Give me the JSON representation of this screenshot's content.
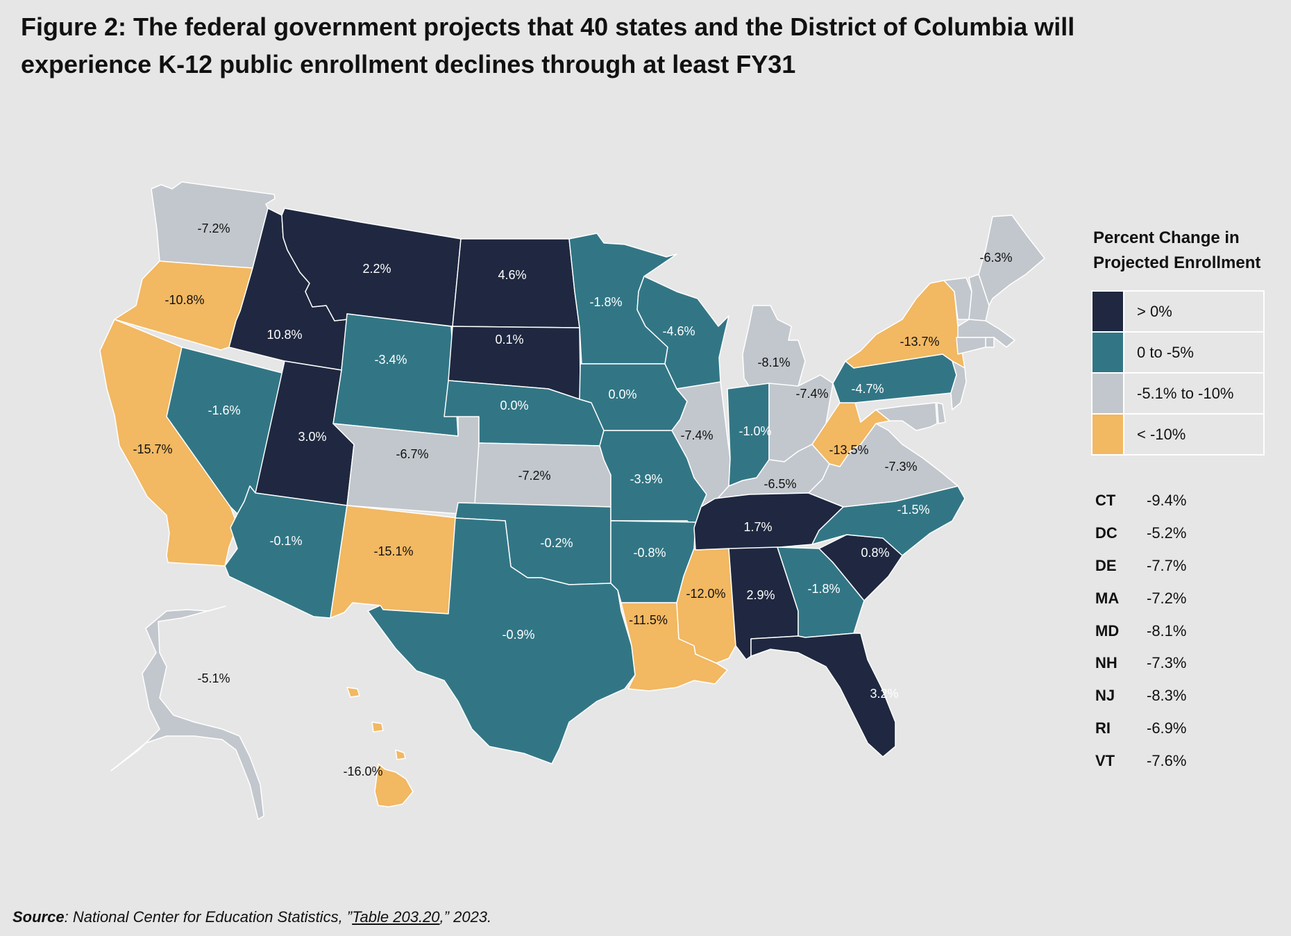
{
  "title": "Figure 2: The federal government projects that 40 states and the District of Columbia will experience K-12 public enrollment declines through at least FY31",
  "colors": {
    "background": "#e6e6e6",
    "gt0": "#1f2840",
    "zero_to_neg5": "#327685",
    "neg5_to_neg10": "#c2c7cd",
    "lt_neg10": "#f2b862"
  },
  "legend": {
    "title": "Percent Change in Projected Enrollment",
    "items": [
      {
        "label": "> 0%",
        "color": "#1f2840"
      },
      {
        "label": "0 to -5%",
        "color": "#327685"
      },
      {
        "label": "-5.1% to -10%",
        "color": "#c2c7cd"
      },
      {
        "label": "< -10%",
        "color": "#f2b862"
      }
    ]
  },
  "small_states": [
    {
      "state": "CT",
      "value": "-9.4%"
    },
    {
      "state": "DC",
      "value": "-5.2%"
    },
    {
      "state": "DE",
      "value": "-7.7%"
    },
    {
      "state": "MA",
      "value": "-7.2%"
    },
    {
      "state": "MD",
      "value": "-8.1%"
    },
    {
      "state": "NH",
      "value": "-7.3%"
    },
    {
      "state": "NJ",
      "value": "-8.3%"
    },
    {
      "state": "RI",
      "value": "-6.9%"
    },
    {
      "state": "VT",
      "value": "-7.6%"
    }
  ],
  "states": [
    {
      "id": "WA",
      "label": "-7.2%",
      "color": "#c2c7cd"
    },
    {
      "id": "OR",
      "label": "-10.8%",
      "color": "#f2b862"
    },
    {
      "id": "CA",
      "label": "-15.7%",
      "color": "#f2b862"
    },
    {
      "id": "NV",
      "label": "-1.6%",
      "color": "#327685"
    },
    {
      "id": "ID",
      "label": "10.8%",
      "color": "#1f2840"
    },
    {
      "id": "MT",
      "label": "2.2%",
      "color": "#1f2840"
    },
    {
      "id": "WY",
      "label": "-3.4%",
      "color": "#327685"
    },
    {
      "id": "UT",
      "label": "3.0%",
      "color": "#1f2840"
    },
    {
      "id": "AZ",
      "label": "-0.1%",
      "color": "#327685"
    },
    {
      "id": "CO",
      "label": "-6.7%",
      "color": "#c2c7cd"
    },
    {
      "id": "NM",
      "label": "-15.1%",
      "color": "#f2b862"
    },
    {
      "id": "ND",
      "label": "4.6%",
      "color": "#1f2840"
    },
    {
      "id": "SD",
      "label": "0.1%",
      "color": "#1f2840"
    },
    {
      "id": "NE",
      "label": "0.0%",
      "color": "#327685"
    },
    {
      "id": "KS",
      "label": "-7.2%",
      "color": "#c2c7cd"
    },
    {
      "id": "OK",
      "label": "-0.2%",
      "color": "#327685"
    },
    {
      "id": "TX",
      "label": "-0.9%",
      "color": "#327685"
    },
    {
      "id": "MN",
      "label": "-1.8%",
      "color": "#327685"
    },
    {
      "id": "IA",
      "label": "0.0%",
      "color": "#327685"
    },
    {
      "id": "MO",
      "label": "-3.9%",
      "color": "#327685"
    },
    {
      "id": "AR",
      "label": "-0.8%",
      "color": "#327685"
    },
    {
      "id": "LA",
      "label": "-11.5%",
      "color": "#f2b862"
    },
    {
      "id": "WI",
      "label": "-4.6%",
      "color": "#327685"
    },
    {
      "id": "IL",
      "label": "-7.4%",
      "color": "#c2c7cd"
    },
    {
      "id": "MI",
      "label": "-8.1%",
      "color": "#c2c7cd"
    },
    {
      "id": "IN",
      "label": "-1.0%",
      "color": "#327685"
    },
    {
      "id": "OH",
      "label": "-7.4%",
      "color": "#c2c7cd"
    },
    {
      "id": "KY",
      "label": "-6.5%",
      "color": "#c2c7cd"
    },
    {
      "id": "TN",
      "label": "1.7%",
      "color": "#1f2840"
    },
    {
      "id": "MS",
      "label": "-12.0%",
      "color": "#f2b862"
    },
    {
      "id": "AL",
      "label": "2.9%",
      "color": "#1f2840"
    },
    {
      "id": "GA",
      "label": "-1.8%",
      "color": "#327685"
    },
    {
      "id": "FL",
      "label": "3.2%",
      "color": "#1f2840"
    },
    {
      "id": "SC",
      "label": "0.8%",
      "color": "#1f2840"
    },
    {
      "id": "NC",
      "label": "-1.5%",
      "color": "#327685"
    },
    {
      "id": "VA",
      "label": "-7.3%",
      "color": "#c2c7cd"
    },
    {
      "id": "WV",
      "label": "-13.5%",
      "color": "#f2b862"
    },
    {
      "id": "PA",
      "label": "-4.7%",
      "color": "#327685"
    },
    {
      "id": "NY",
      "label": "-13.7%",
      "color": "#f2b862"
    },
    {
      "id": "ME",
      "label": "-6.3%",
      "color": "#c2c7cd"
    },
    {
      "id": "AK",
      "label": "-5.1%",
      "color": "#c2c7cd"
    },
    {
      "id": "HI",
      "label": "-16.0%",
      "color": "#f2b862"
    },
    {
      "id": "VT",
      "label": "",
      "color": "#c2c7cd"
    },
    {
      "id": "NH",
      "label": "",
      "color": "#c2c7cd"
    },
    {
      "id": "MA",
      "label": "",
      "color": "#c2c7cd"
    },
    {
      "id": "RI",
      "label": "",
      "color": "#c2c7cd"
    },
    {
      "id": "CT",
      "label": "",
      "color": "#c2c7cd"
    },
    {
      "id": "NJ",
      "label": "",
      "color": "#c2c7cd"
    },
    {
      "id": "DE",
      "label": "",
      "color": "#c2c7cd"
    },
    {
      "id": "MD",
      "label": "",
      "color": "#c2c7cd"
    }
  ],
  "source": {
    "prefix": "Source",
    "text_before": ": National Center for Education Statistics, ”",
    "link": "Table 203.20",
    "text_after": ",” 2023."
  }
}
